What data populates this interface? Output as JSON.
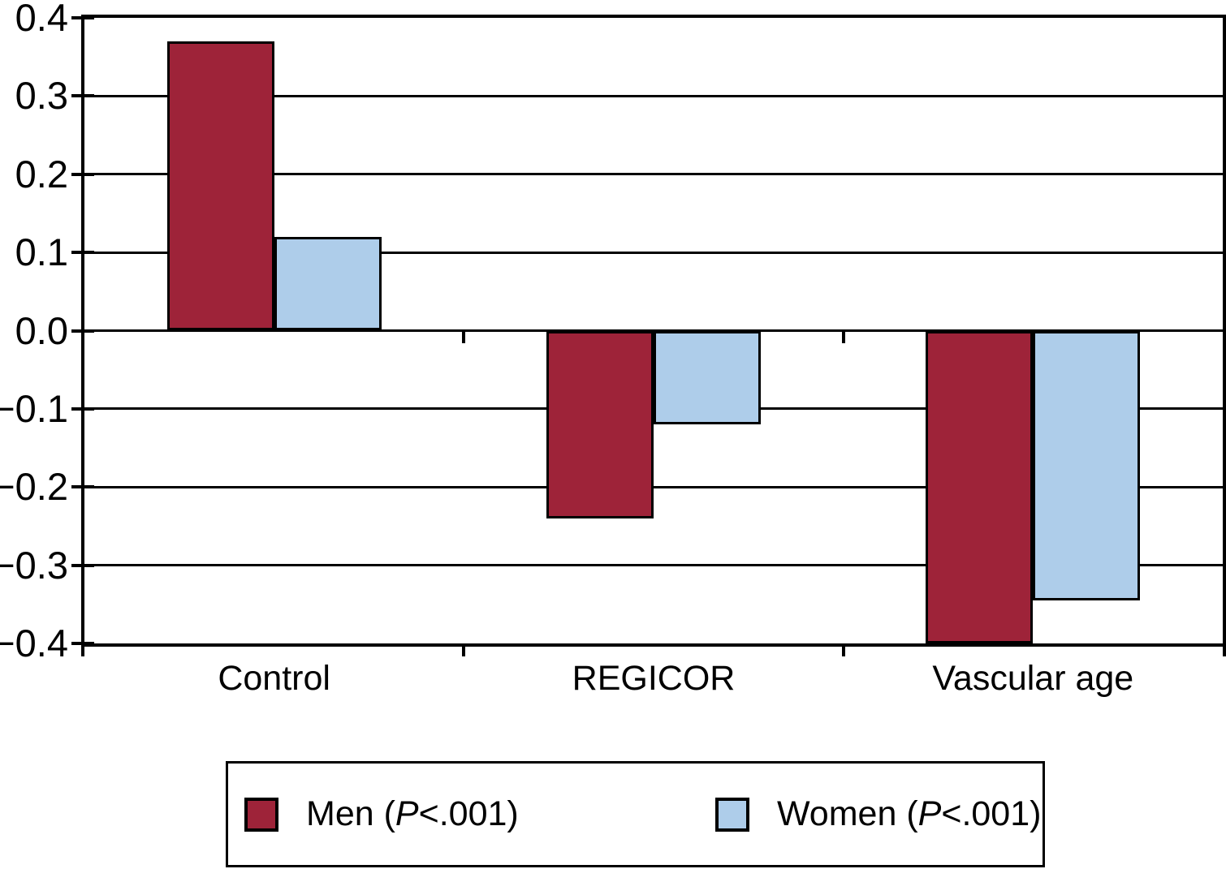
{
  "chart_data": {
    "type": "bar",
    "categories": [
      "Control",
      "REGICOR",
      "Vascular age"
    ],
    "series": [
      {
        "name": "Men",
        "p_value": "P<.001",
        "color": "#9E2339",
        "values": [
          0.37,
          -0.24,
          -0.4
        ]
      },
      {
        "name": "Women",
        "p_value": "P<.001",
        "color": "#AECDEA",
        "values": [
          0.12,
          -0.12,
          -0.345
        ]
      }
    ],
    "title": "",
    "xlabel": "",
    "ylabel": "",
    "ylim": [
      -0.4,
      0.4
    ],
    "ytick_step": 0.1,
    "yticks": [
      "0.4",
      "0.3",
      "0.2",
      "0.1",
      "0.0",
      "−0.1",
      "−0.2",
      "−0.3",
      "−0.4"
    ],
    "grid": true,
    "legend_position": "bottom"
  },
  "legend": {
    "items": [
      {
        "pre": "Men (",
        "italic": "P",
        "post": "<.001)",
        "color": "#9E2339"
      },
      {
        "pre": "Women (",
        "italic": "P",
        "post": "<.001)",
        "color": "#AECDEA"
      }
    ]
  },
  "colors": {
    "axis": "#000000",
    "background": "#FFFFFF",
    "men": "#9E2339",
    "women": "#AECDEA"
  }
}
